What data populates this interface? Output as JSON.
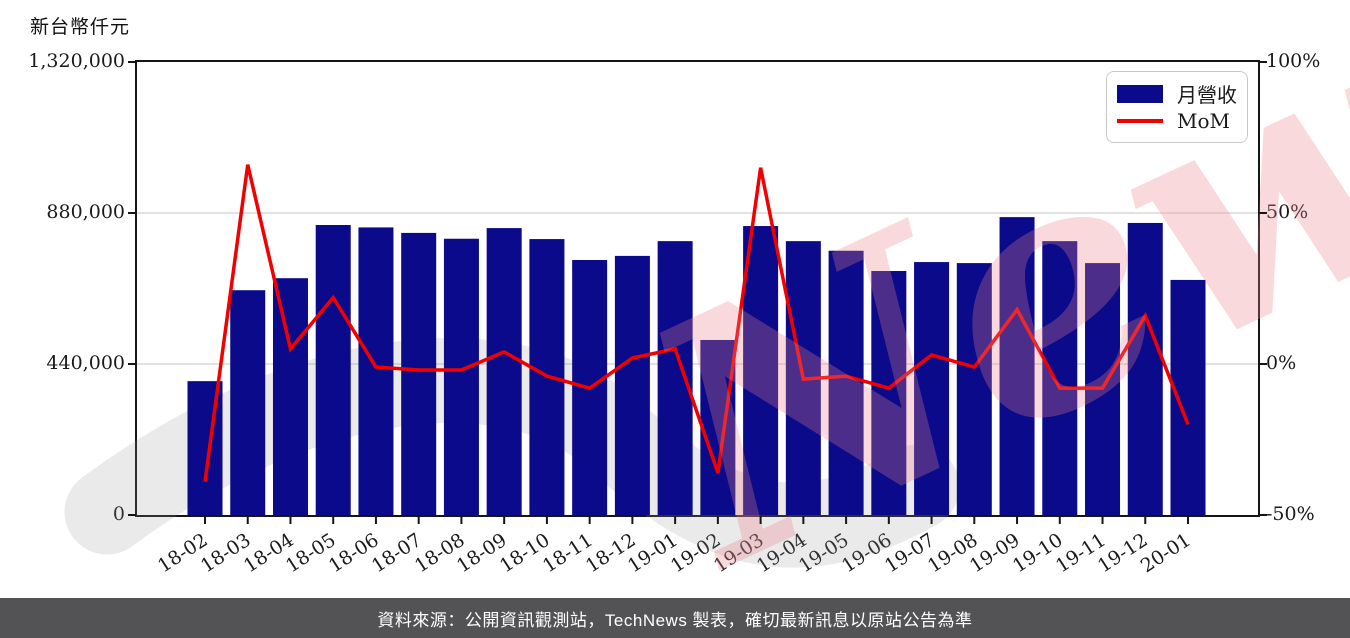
{
  "header": {
    "y_axis_title": "新台幣仟元"
  },
  "legend": {
    "bar_label": "月營收",
    "line_label": "MoM"
  },
  "watermark": {
    "visible_text": "News"
  },
  "footer": {
    "text": "資料來源：公開資訊觀測站，TechNews 製表，確切最新訊息以原站公告為準"
  },
  "colors": {
    "bar": "#0A0A8A",
    "line": "#F20000",
    "grid": "#D9D9D9",
    "axis": "#151515",
    "footer_bg": "#535355",
    "watermark_pink": "rgba(236,130,140,0.30)",
    "watermark_gray": "rgba(150,150,150,0.20)"
  },
  "chart_data": {
    "type": "bar+line",
    "title": "",
    "categories": [
      "18-02",
      "18-03",
      "18-04",
      "18-05",
      "18-06",
      "18-07",
      "18-08",
      "18-09",
      "18-10",
      "18-11",
      "18-12",
      "19-01",
      "19-02",
      "19-03",
      "19-04",
      "19-05",
      "19-06",
      "19-07",
      "19-08",
      "19-09",
      "19-10",
      "19-11",
      "19-12",
      "20-01"
    ],
    "series": [
      {
        "name": "月營收",
        "type": "bar",
        "axis": "left",
        "unit": "新台幣仟元",
        "values": [
          390000,
          655000,
          690000,
          845000,
          838000,
          822000,
          805000,
          836000,
          804000,
          743000,
          755000,
          798000,
          510000,
          842000,
          798000,
          770000,
          711000,
          737000,
          734000,
          868000,
          798000,
          734000,
          851000,
          685000
        ]
      },
      {
        "name": "MoM",
        "type": "line",
        "axis": "right",
        "unit": "%",
        "values": [
          -39,
          66,
          5,
          22,
          -1,
          -2,
          -2,
          4,
          -4,
          -8,
          2,
          5,
          -36,
          65,
          -5,
          -4,
          -8,
          3,
          -1,
          18,
          -8,
          -8,
          16,
          -20
        ]
      }
    ],
    "left_axis": {
      "title": "新台幣仟元",
      "min": 0,
      "max": 1320000,
      "ticks": [
        {
          "v": 0,
          "label": "0"
        },
        {
          "v": 440000,
          "label": "440,000"
        },
        {
          "v": 880000,
          "label": "880,000"
        },
        {
          "v": 1320000,
          "label": "1,320,000"
        }
      ],
      "gridlines": [
        440000,
        880000
      ]
    },
    "right_axis": {
      "min": -50,
      "max": 100,
      "ticks": [
        {
          "v": -50,
          "label": "-50%"
        },
        {
          "v": 0,
          "label": "0%"
        },
        {
          "v": 50,
          "label": "50%"
        },
        {
          "v": 100,
          "label": "100%"
        }
      ]
    },
    "legend_position": "upper right",
    "grid": "horizontal"
  }
}
